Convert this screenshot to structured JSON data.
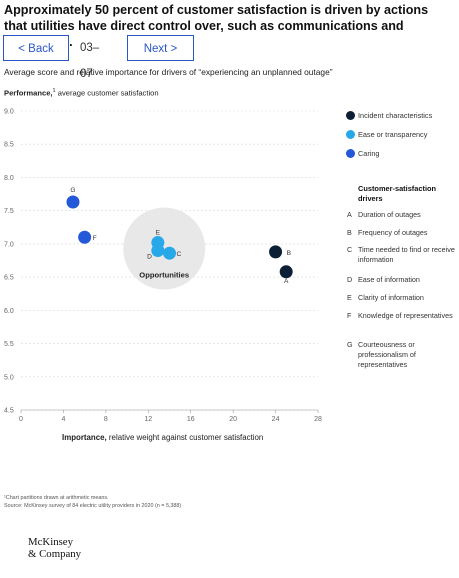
{
  "header": {
    "title": "Approximately 50 percent of customer satisfaction is driven by actions that utilities have direct control over, such as communications and knowledge."
  },
  "nav": {
    "back_label": "< Back",
    "page": "03–07",
    "next_label": "Next >"
  },
  "chart_data": {
    "type": "scatter",
    "title": "",
    "subtitle": "Average score and relative importance for drivers of “experiencing an unplanned outage”",
    "ylabel_bold": "Performance,",
    "ylabel_sup": "1",
    "ylabel_rest": " average customer satisfaction",
    "xlabel_bold": "Importance,",
    "xlabel_rest": " relative weight against customer satisfaction",
    "xlim": [
      0,
      28
    ],
    "ylim": [
      4.5,
      9.0
    ],
    "xticks": [
      "0",
      "4",
      "8",
      "12",
      "16",
      "20",
      "24",
      "28"
    ],
    "yticks": [
      "9.0",
      "8.5",
      "8.0",
      "7.5",
      "7.0",
      "6.5",
      "6.0",
      "5.5",
      "5.0",
      "4.5"
    ],
    "grid": "horizontal",
    "legend_position": "right",
    "series": [
      {
        "name": "Incident characteristics",
        "color": "#0b1f35"
      },
      {
        "name": "Ease or transparency",
        "color": "#27a8e9"
      },
      {
        "name": "Caring",
        "color": "#2358d9"
      }
    ],
    "points": [
      {
        "label": "A",
        "series": 0,
        "x": 25.0,
        "y": 6.58
      },
      {
        "label": "B",
        "series": 0,
        "x": 24.0,
        "y": 6.88
      },
      {
        "label": "C",
        "series": 1,
        "x": 14.0,
        "y": 6.86
      },
      {
        "label": "D",
        "series": 1,
        "x": 12.9,
        "y": 6.9
      },
      {
        "label": "E",
        "series": 1,
        "x": 12.9,
        "y": 7.02
      },
      {
        "label": "F",
        "series": 2,
        "x": 6.0,
        "y": 7.1
      },
      {
        "label": "G",
        "series": 2,
        "x": 4.9,
        "y": 7.63
      }
    ],
    "annotation": {
      "text": "Opportunities",
      "cx": 13.5,
      "cy": 6.93,
      "color": "#e8e8e8"
    },
    "drivers_heading": "Customer-satisfaction drivers",
    "drivers": [
      {
        "letter": "A",
        "text": "Duration of outages"
      },
      {
        "letter": "B",
        "text": "Frequency of outages"
      },
      {
        "letter": "C",
        "text": "Time needed to find or receive information"
      },
      {
        "letter": "D",
        "text": "Ease of information"
      },
      {
        "letter": "E",
        "text": "Clarity of information"
      },
      {
        "letter": "F",
        "text": "Knowledge of representatives"
      },
      {
        "letter": "G",
        "text": "Courteousness or professionalism of representatives"
      }
    ]
  },
  "footer": {
    "note": "¹Chart partitions drawn at arithmetic means.",
    "source": "Source: McKinsey survey of 84 electric utility providers in 2020 (n = 5,388)"
  },
  "logo": {
    "line1": "McKinsey",
    "line2": "& Company"
  }
}
